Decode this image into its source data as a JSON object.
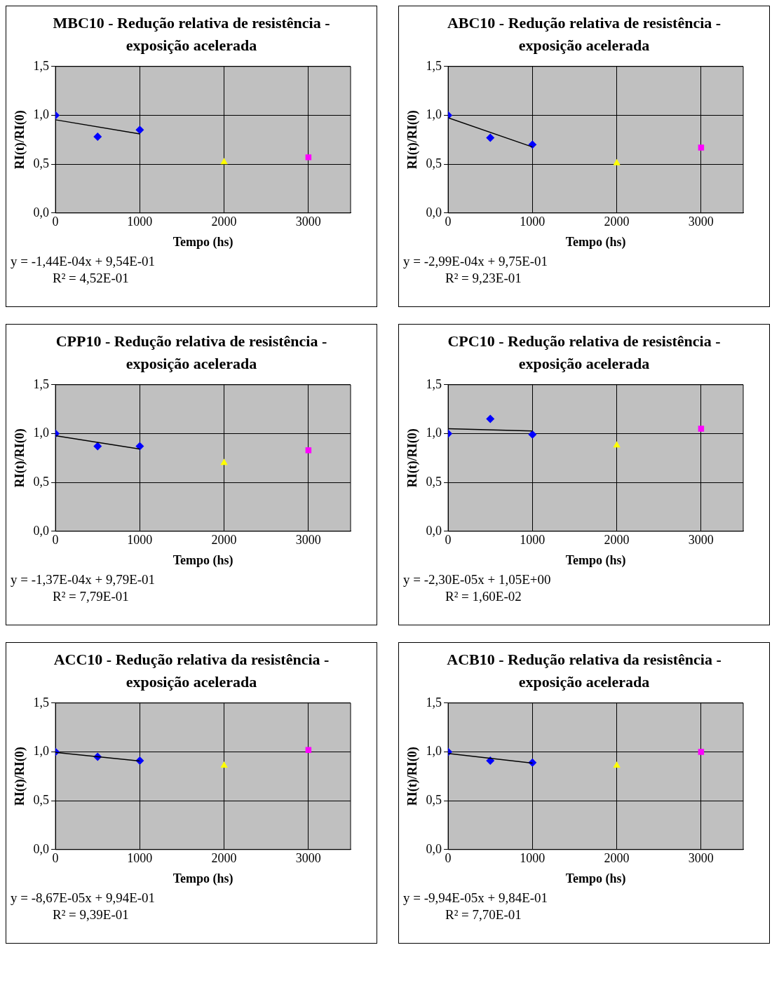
{
  "chart_data": [
    {
      "type": "scatter",
      "title": "MBC10 - Redução relativa de resistência - exposição acelerada",
      "xlabel": "Tempo (hs)",
      "ylabel": "RI(t)/RI(0)",
      "xlim": [
        0,
        3500
      ],
      "xticks": [
        0,
        1000,
        2000,
        3000
      ],
      "ylim": [
        0,
        1.5
      ],
      "yticks": [
        {
          "value": 0,
          "label": "0,0"
        },
        {
          "value": 0.5,
          "label": "0,5"
        },
        {
          "value": 1,
          "label": "1,0"
        },
        {
          "value": 1.5,
          "label": "1,5"
        }
      ],
      "grid": true,
      "legend": false,
      "annotations": [
        "y = -1,44E-04x + 9,54E-01",
        "R² = 4,52E-01"
      ],
      "series": [
        {
          "type": "scatter",
          "marker": "diamond",
          "color": "#0000ff",
          "x": [
            0,
            500,
            1000
          ],
          "values": [
            1.0,
            0.78,
            0.85
          ]
        },
        {
          "type": "scatter",
          "marker": "triangle",
          "color": "#ffff00",
          "x": [
            2000
          ],
          "values": [
            0.52
          ]
        },
        {
          "type": "scatter",
          "marker": "square",
          "color": "#ff00ff",
          "x": [
            3000
          ],
          "values": [
            0.57
          ]
        },
        {
          "type": "line",
          "marker": "none",
          "color": "#000000",
          "x": [
            0,
            1000
          ],
          "values": [
            0.954,
            0.81
          ]
        }
      ]
    },
    {
      "type": "scatter",
      "title": "ABC10 - Redução relativa de resistência - exposição acelerada",
      "xlabel": "Tempo (hs)",
      "ylabel": "RI(t)/RI(0)",
      "xlim": [
        0,
        3500
      ],
      "xticks": [
        0,
        1000,
        2000,
        3000
      ],
      "ylim": [
        0,
        1.5
      ],
      "yticks": [
        {
          "value": 0,
          "label": "0,0"
        },
        {
          "value": 0.5,
          "label": "0,5"
        },
        {
          "value": 1,
          "label": "1,0"
        },
        {
          "value": 1.5,
          "label": "1,5"
        }
      ],
      "grid": true,
      "legend": false,
      "annotations": [
        "y = -2,99E-04x + 9,75E-01",
        "R² = 9,23E-01"
      ],
      "series": [
        {
          "type": "scatter",
          "marker": "diamond",
          "color": "#0000ff",
          "x": [
            0,
            500,
            1000
          ],
          "values": [
            1.0,
            0.77,
            0.7
          ]
        },
        {
          "type": "scatter",
          "marker": "triangle",
          "color": "#ffff00",
          "x": [
            2000
          ],
          "values": [
            0.51
          ]
        },
        {
          "type": "scatter",
          "marker": "square",
          "color": "#ff00ff",
          "x": [
            3000
          ],
          "values": [
            0.67
          ]
        },
        {
          "type": "line",
          "marker": "none",
          "color": "#000000",
          "x": [
            0,
            1000
          ],
          "values": [
            0.975,
            0.676
          ]
        }
      ]
    },
    {
      "type": "scatter",
      "title": "CPP10 - Redução relativa de resistência - exposição acelerada",
      "xlabel": "Tempo (hs)",
      "ylabel": "RI(t)/RI(0)",
      "xlim": [
        0,
        3500
      ],
      "xticks": [
        0,
        1000,
        2000,
        3000
      ],
      "ylim": [
        0,
        1.5
      ],
      "yticks": [
        {
          "value": 0,
          "label": "0,0"
        },
        {
          "value": 0.5,
          "label": "0,5"
        },
        {
          "value": 1,
          "label": "1,0"
        },
        {
          "value": 1.5,
          "label": "1,5"
        }
      ],
      "grid": true,
      "legend": false,
      "annotations": [
        "y = -1,37E-04x + 9,79E-01",
        "R² = 7,79E-01"
      ],
      "series": [
        {
          "type": "scatter",
          "marker": "diamond",
          "color": "#0000ff",
          "x": [
            0,
            500,
            1000
          ],
          "values": [
            1.0,
            0.87,
            0.87
          ]
        },
        {
          "type": "scatter",
          "marker": "triangle",
          "color": "#ffff00",
          "x": [
            2000
          ],
          "values": [
            0.7
          ]
        },
        {
          "type": "scatter",
          "marker": "square",
          "color": "#ff00ff",
          "x": [
            3000
          ],
          "values": [
            0.83
          ]
        },
        {
          "type": "line",
          "marker": "none",
          "color": "#000000",
          "x": [
            0,
            1000
          ],
          "values": [
            0.979,
            0.842
          ]
        }
      ]
    },
    {
      "type": "scatter",
      "title": "CPC10 - Redução relativa de resistência - exposição acelerada",
      "xlabel": "Tempo (hs)",
      "ylabel": "RI(t)/RI(0)",
      "xlim": [
        0,
        3500
      ],
      "xticks": [
        0,
        1000,
        2000,
        3000
      ],
      "ylim": [
        0,
        1.5
      ],
      "yticks": [
        {
          "value": 0,
          "label": "0,0"
        },
        {
          "value": 0.5,
          "label": "0,5"
        },
        {
          "value": 1,
          "label": "1,0"
        },
        {
          "value": 1.5,
          "label": "1,5"
        }
      ],
      "grid": true,
      "legend": false,
      "annotations": [
        "y = -2,30E-05x + 1,05E+00",
        "R² = 1,60E-02"
      ],
      "series": [
        {
          "type": "scatter",
          "marker": "diamond",
          "color": "#0000ff",
          "x": [
            0,
            500,
            1000
          ],
          "values": [
            1.0,
            1.15,
            0.99
          ]
        },
        {
          "type": "scatter",
          "marker": "triangle",
          "color": "#ffff00",
          "x": [
            2000
          ],
          "values": [
            0.88
          ]
        },
        {
          "type": "scatter",
          "marker": "square",
          "color": "#ff00ff",
          "x": [
            3000
          ],
          "values": [
            1.05
          ]
        },
        {
          "type": "line",
          "marker": "none",
          "color": "#000000",
          "x": [
            0,
            1000
          ],
          "values": [
            1.05,
            1.027
          ]
        }
      ]
    },
    {
      "type": "scatter",
      "title": "ACC10 - Redução relativa da resistência - exposição acelerada",
      "xlabel": "Tempo (hs)",
      "ylabel": "RI(t)/RI(0)",
      "xlim": [
        0,
        3500
      ],
      "xticks": [
        0,
        1000,
        2000,
        3000
      ],
      "ylim": [
        0,
        1.5
      ],
      "yticks": [
        {
          "value": 0,
          "label": "0,0"
        },
        {
          "value": 0.5,
          "label": "0,5"
        },
        {
          "value": 1,
          "label": "1,0"
        },
        {
          "value": 1.5,
          "label": "1,5"
        }
      ],
      "grid": true,
      "legend": false,
      "annotations": [
        "y = -8,67E-05x + 9,94E-01",
        "R² = 9,39E-01"
      ],
      "series": [
        {
          "type": "scatter",
          "marker": "diamond",
          "color": "#0000ff",
          "x": [
            0,
            500,
            1000
          ],
          "values": [
            1.0,
            0.95,
            0.91
          ]
        },
        {
          "type": "scatter",
          "marker": "triangle",
          "color": "#ffff00",
          "x": [
            2000
          ],
          "values": [
            0.86
          ]
        },
        {
          "type": "scatter",
          "marker": "square",
          "color": "#ff00ff",
          "x": [
            3000
          ],
          "values": [
            1.02
          ]
        },
        {
          "type": "line",
          "marker": "none",
          "color": "#000000",
          "x": [
            0,
            1000
          ],
          "values": [
            0.994,
            0.907
          ]
        }
      ]
    },
    {
      "type": "scatter",
      "title": "ACB10 - Redução relativa da resistência - exposição acelerada",
      "xlabel": "Tempo (hs)",
      "ylabel": "RI(t)/RI(0)",
      "xlim": [
        0,
        3500
      ],
      "xticks": [
        0,
        1000,
        2000,
        3000
      ],
      "ylim": [
        0,
        1.5
      ],
      "yticks": [
        {
          "value": 0,
          "label": "0,0"
        },
        {
          "value": 0.5,
          "label": "0,5"
        },
        {
          "value": 1,
          "label": "1,0"
        },
        {
          "value": 1.5,
          "label": "1,5"
        }
      ],
      "grid": true,
      "legend": false,
      "annotations": [
        "y = -9,94E-05x + 9,84E-01",
        "R² = 7,70E-01"
      ],
      "series": [
        {
          "type": "scatter",
          "marker": "diamond",
          "color": "#0000ff",
          "x": [
            0,
            500,
            1000
          ],
          "values": [
            1.0,
            0.91,
            0.89
          ]
        },
        {
          "type": "scatter",
          "marker": "triangle",
          "color": "#ffff00",
          "x": [
            2000
          ],
          "values": [
            0.86
          ]
        },
        {
          "type": "scatter",
          "marker": "square",
          "color": "#ff00ff",
          "x": [
            3000
          ],
          "values": [
            1.0
          ]
        },
        {
          "type": "line",
          "marker": "none",
          "color": "#000000",
          "x": [
            0,
            1000
          ],
          "values": [
            0.984,
            0.885
          ]
        }
      ]
    }
  ]
}
